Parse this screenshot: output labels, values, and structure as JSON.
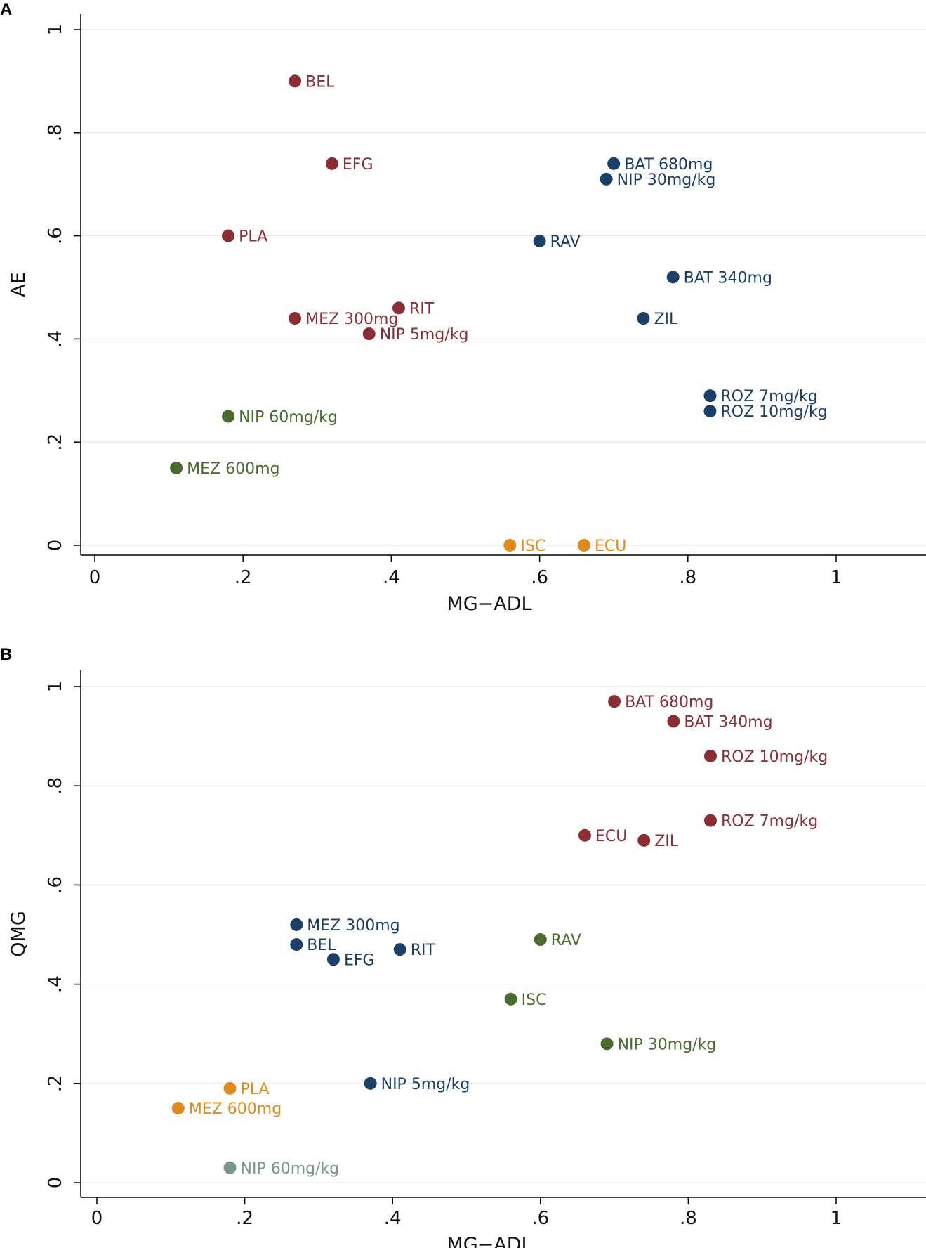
{
  "chart_data": [
    {
      "panel": "A",
      "type": "scatter",
      "title": "",
      "xlabel": "MG−ADL",
      "ylabel": "AE",
      "xlim": [
        0,
        1.12
      ],
      "ylim": [
        -0.02,
        1.0
      ],
      "xticks": [
        {
          "v": 0,
          "label": "0"
        },
        {
          "v": 0.2,
          "label": ".2"
        },
        {
          "v": 0.4,
          "label": ".4"
        },
        {
          "v": 0.6,
          "label": ".6"
        },
        {
          "v": 0.8,
          "label": ".8"
        },
        {
          "v": 1,
          "label": "1"
        }
      ],
      "yticks": [
        {
          "v": 0,
          "label": "0"
        },
        {
          "v": 0.2,
          "label": ".2"
        },
        {
          "v": 0.4,
          "label": ".4"
        },
        {
          "v": 0.6,
          "label": ".6"
        },
        {
          "v": 0.8,
          "label": ".8"
        },
        {
          "v": 1,
          "label": "1"
        }
      ],
      "grid": true,
      "points": [
        {
          "label": "BEL",
          "x": 0.27,
          "y": 0.9,
          "color": "#8b2e33"
        },
        {
          "label": "EFG",
          "x": 0.32,
          "y": 0.74,
          "color": "#8b2e33"
        },
        {
          "label": "PLA",
          "x": 0.18,
          "y": 0.6,
          "color": "#8b2e33"
        },
        {
          "label": "RIT",
          "x": 0.41,
          "y": 0.46,
          "color": "#8b2e33"
        },
        {
          "label": "MEZ 300mg",
          "x": 0.27,
          "y": 0.44,
          "color": "#8b2e33"
        },
        {
          "label": "NIP 5mg/kg",
          "x": 0.37,
          "y": 0.41,
          "color": "#8b2e33"
        },
        {
          "label": "BAT 680mg",
          "x": 0.7,
          "y": 0.74,
          "color": "#1b3f66"
        },
        {
          "label": "NIP 30mg/kg",
          "x": 0.69,
          "y": 0.71,
          "color": "#1b3f66"
        },
        {
          "label": "RAV",
          "x": 0.6,
          "y": 0.59,
          "color": "#1b3f66"
        },
        {
          "label": "BAT 340mg",
          "x": 0.78,
          "y": 0.52,
          "color": "#1b3f66"
        },
        {
          "label": "ZIL",
          "x": 0.74,
          "y": 0.44,
          "color": "#1b3f66"
        },
        {
          "label": "ROZ 7mg/kg",
          "x": 0.83,
          "y": 0.29,
          "color": "#1b3f66"
        },
        {
          "label": "ROZ 10mg/kg",
          "x": 0.83,
          "y": 0.26,
          "color": "#1b3f66"
        },
        {
          "label": "NIP 60mg/kg",
          "x": 0.18,
          "y": 0.25,
          "color": "#4a6a2e"
        },
        {
          "label": "MEZ 600mg",
          "x": 0.11,
          "y": 0.15,
          "color": "#4a6a2e"
        },
        {
          "label": "ISC",
          "x": 0.56,
          "y": 0.0,
          "color": "#e08a1e"
        },
        {
          "label": "ECU",
          "x": 0.66,
          "y": 0.0,
          "color": "#e08a1e"
        }
      ]
    },
    {
      "panel": "B",
      "type": "scatter",
      "title": "",
      "xlabel": "MG−ADL",
      "ylabel": "QMG",
      "xlim": [
        0,
        1.12
      ],
      "ylim": [
        -0.02,
        1.0
      ],
      "xticks": [
        {
          "v": 0,
          "label": "0"
        },
        {
          "v": 0.2,
          "label": ".2"
        },
        {
          "v": 0.4,
          "label": ".4"
        },
        {
          "v": 0.6,
          "label": ".6"
        },
        {
          "v": 0.8,
          "label": ".8"
        },
        {
          "v": 1,
          "label": "1"
        }
      ],
      "yticks": [
        {
          "v": 0,
          "label": "0"
        },
        {
          "v": 0.2,
          "label": ".2"
        },
        {
          "v": 0.4,
          "label": ".4"
        },
        {
          "v": 0.6,
          "label": ".6"
        },
        {
          "v": 0.8,
          "label": ".8"
        },
        {
          "v": 1,
          "label": "1"
        }
      ],
      "grid": true,
      "points": [
        {
          "label": "BAT 680mg",
          "x": 0.7,
          "y": 0.97,
          "color": "#8b2e33"
        },
        {
          "label": "BAT 340mg",
          "x": 0.78,
          "y": 0.93,
          "color": "#8b2e33"
        },
        {
          "label": "ROZ 10mg/kg",
          "x": 0.83,
          "y": 0.86,
          "color": "#8b2e33"
        },
        {
          "label": "ROZ 7mg/kg",
          "x": 0.83,
          "y": 0.73,
          "color": "#8b2e33"
        },
        {
          "label": "ECU",
          "x": 0.66,
          "y": 0.7,
          "color": "#8b2e33"
        },
        {
          "label": "ZIL",
          "x": 0.74,
          "y": 0.69,
          "color": "#8b2e33"
        },
        {
          "label": "MEZ 300mg",
          "x": 0.27,
          "y": 0.52,
          "color": "#1b3f66"
        },
        {
          "label": "BEL",
          "x": 0.27,
          "y": 0.48,
          "color": "#1b3f66"
        },
        {
          "label": "EFG",
          "x": 0.32,
          "y": 0.45,
          "color": "#1b3f66"
        },
        {
          "label": "RIT",
          "x": 0.41,
          "y": 0.47,
          "color": "#1b3f66"
        },
        {
          "label": "NIP 5mg/kg",
          "x": 0.37,
          "y": 0.2,
          "color": "#1b3f66"
        },
        {
          "label": "RAV",
          "x": 0.6,
          "y": 0.49,
          "color": "#4a6a2e"
        },
        {
          "label": "ISC",
          "x": 0.56,
          "y": 0.37,
          "color": "#4a6a2e"
        },
        {
          "label": "NIP 30mg/kg",
          "x": 0.69,
          "y": 0.28,
          "color": "#4a6a2e"
        },
        {
          "label": "PLA",
          "x": 0.18,
          "y": 0.19,
          "color": "#e08a1e"
        },
        {
          "label": "MEZ 600mg",
          "x": 0.11,
          "y": 0.15,
          "color": "#e08a1e"
        },
        {
          "label": "NIP 60mg/kg",
          "x": 0.18,
          "y": 0.03,
          "color": "#7a968a"
        }
      ]
    }
  ],
  "panels": {
    "a_letter": "A",
    "b_letter": "B"
  }
}
